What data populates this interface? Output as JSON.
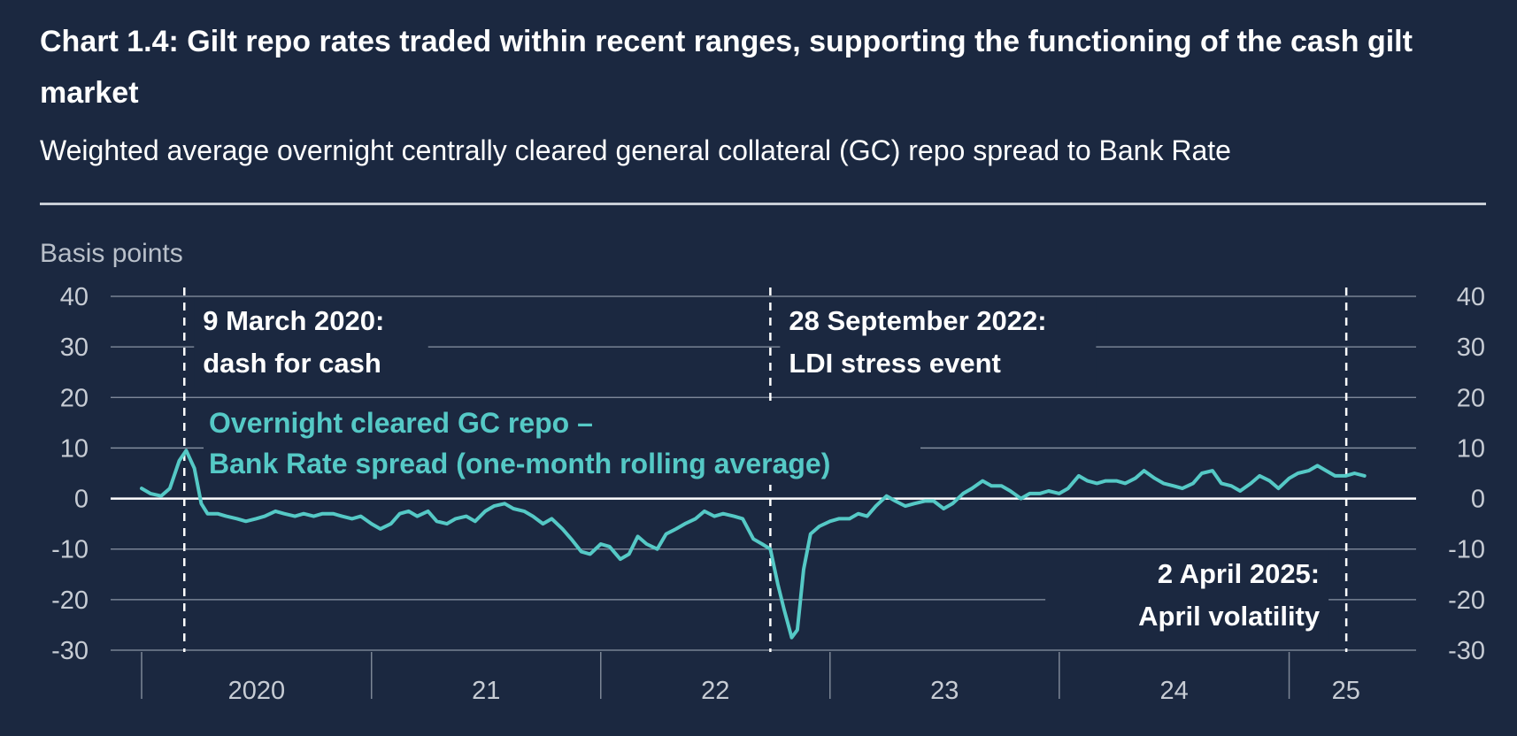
{
  "header": {
    "title": "Chart 1.4: Gilt repo rates traded within recent ranges, supporting the functioning of the cash gilt market",
    "subtitle": "Weighted average overnight centrally cleared general collateral (GC) repo spread to Bank Rate"
  },
  "chart_data": {
    "type": "line",
    "title": "Chart 1.4: Gilt repo rates traded within recent ranges, supporting the functioning of the cash gilt market",
    "subtitle": "Weighted average overnight centrally cleared general collateral (GC) repo spread to Bank Rate",
    "ylabel": "Basis points",
    "ylim": [
      -30,
      40
    ],
    "yticks": [
      40,
      30,
      20,
      10,
      0,
      -10,
      -20,
      -30
    ],
    "ytick_labels": [
      "40",
      "30",
      "20",
      "10",
      "0",
      "-10",
      "-20",
      "-30"
    ],
    "x_range": [
      "2020-01-01",
      "2025-07-01"
    ],
    "x_year_labels": [
      {
        "year": 2020,
        "label": "2020"
      },
      {
        "year": 2021,
        "label": "21"
      },
      {
        "year": 2022,
        "label": "22"
      },
      {
        "year": 2023,
        "label": "23"
      },
      {
        "year": 2024,
        "label": "24"
      },
      {
        "year": 2025,
        "label": "25"
      }
    ],
    "grid": true,
    "zero_line": true,
    "colors": {
      "series": "#55c9c6",
      "background": "#1b2840",
      "grid": "#8a94a4",
      "zero_line": "#ffffff",
      "text": "#ffffff"
    },
    "series": [
      {
        "name": "Overnight cleared GC repo – Bank Rate spread (one-month rolling average)",
        "name_lines": [
          "Overnight cleared GC repo –",
          "Bank Rate spread (one-month rolling average)"
        ],
        "points": [
          [
            "2020-01-01",
            2.0
          ],
          [
            "2020-01-15",
            1.0
          ],
          [
            "2020-02-01",
            0.5
          ],
          [
            "2020-02-15",
            2.0
          ],
          [
            "2020-03-01",
            7.5
          ],
          [
            "2020-03-12",
            9.5
          ],
          [
            "2020-03-25",
            6.0
          ],
          [
            "2020-04-05",
            -1.0
          ],
          [
            "2020-04-15",
            -3.0
          ],
          [
            "2020-05-01",
            -3.0
          ],
          [
            "2020-05-15",
            -3.5
          ],
          [
            "2020-06-01",
            -4.0
          ],
          [
            "2020-06-15",
            -4.5
          ],
          [
            "2020-07-01",
            -4.0
          ],
          [
            "2020-07-15",
            -3.5
          ],
          [
            "2020-08-01",
            -2.5
          ],
          [
            "2020-08-15",
            -3.0
          ],
          [
            "2020-09-01",
            -3.5
          ],
          [
            "2020-09-15",
            -3.0
          ],
          [
            "2020-10-01",
            -3.5
          ],
          [
            "2020-10-15",
            -3.0
          ],
          [
            "2020-11-01",
            -3.0
          ],
          [
            "2020-11-15",
            -3.5
          ],
          [
            "2020-12-01",
            -4.0
          ],
          [
            "2020-12-15",
            -3.5
          ],
          [
            "2021-01-01",
            -5.0
          ],
          [
            "2021-01-15",
            -6.0
          ],
          [
            "2021-02-01",
            -5.0
          ],
          [
            "2021-02-15",
            -3.0
          ],
          [
            "2021-03-01",
            -2.5
          ],
          [
            "2021-03-15",
            -3.5
          ],
          [
            "2021-04-01",
            -2.5
          ],
          [
            "2021-04-15",
            -4.5
          ],
          [
            "2021-05-01",
            -5.0
          ],
          [
            "2021-05-15",
            -4.0
          ],
          [
            "2021-06-01",
            -3.5
          ],
          [
            "2021-06-15",
            -4.5
          ],
          [
            "2021-07-01",
            -2.5
          ],
          [
            "2021-07-15",
            -1.5
          ],
          [
            "2021-08-01",
            -1.0
          ],
          [
            "2021-08-15",
            -2.0
          ],
          [
            "2021-09-01",
            -2.5
          ],
          [
            "2021-09-15",
            -3.5
          ],
          [
            "2021-10-01",
            -5.0
          ],
          [
            "2021-10-15",
            -4.0
          ],
          [
            "2021-11-01",
            -6.0
          ],
          [
            "2021-11-15",
            -8.0
          ],
          [
            "2021-12-01",
            -10.5
          ],
          [
            "2021-12-15",
            -11.0
          ],
          [
            "2022-01-01",
            -9.0
          ],
          [
            "2022-01-15",
            -9.5
          ],
          [
            "2022-02-01",
            -12.0
          ],
          [
            "2022-02-15",
            -11.0
          ],
          [
            "2022-03-01",
            -7.5
          ],
          [
            "2022-03-15",
            -9.0
          ],
          [
            "2022-04-01",
            -10.0
          ],
          [
            "2022-04-15",
            -7.0
          ],
          [
            "2022-05-01",
            -6.0
          ],
          [
            "2022-05-15",
            -5.0
          ],
          [
            "2022-06-01",
            -4.0
          ],
          [
            "2022-06-15",
            -2.5
          ],
          [
            "2022-07-01",
            -3.5
          ],
          [
            "2022-07-15",
            -3.0
          ],
          [
            "2022-08-01",
            -3.5
          ],
          [
            "2022-08-15",
            -4.0
          ],
          [
            "2022-09-01",
            -8.0
          ],
          [
            "2022-09-15",
            -9.0
          ],
          [
            "2022-09-28",
            -10.0
          ],
          [
            "2022-10-10",
            -17.0
          ],
          [
            "2022-10-20",
            -22.0
          ],
          [
            "2022-11-01",
            -27.5
          ],
          [
            "2022-11-10",
            -26.0
          ],
          [
            "2022-11-20",
            -14.0
          ],
          [
            "2022-12-01",
            -7.0
          ],
          [
            "2022-12-15",
            -5.5
          ],
          [
            "2023-01-01",
            -4.5
          ],
          [
            "2023-01-15",
            -4.0
          ],
          [
            "2023-02-01",
            -4.0
          ],
          [
            "2023-02-15",
            -3.0
          ],
          [
            "2023-03-01",
            -3.5
          ],
          [
            "2023-03-15",
            -1.5
          ],
          [
            "2023-04-01",
            0.5
          ],
          [
            "2023-04-15",
            -0.5
          ],
          [
            "2023-05-01",
            -1.5
          ],
          [
            "2023-05-15",
            -1.0
          ],
          [
            "2023-06-01",
            -0.5
          ],
          [
            "2023-06-15",
            -0.5
          ],
          [
            "2023-07-01",
            -2.0
          ],
          [
            "2023-07-15",
            -1.0
          ],
          [
            "2023-08-01",
            1.0
          ],
          [
            "2023-08-15",
            2.0
          ],
          [
            "2023-09-01",
            3.5
          ],
          [
            "2023-09-15",
            2.5
          ],
          [
            "2023-10-01",
            2.5
          ],
          [
            "2023-10-15",
            1.5
          ],
          [
            "2023-11-01",
            0.0
          ],
          [
            "2023-11-15",
            1.0
          ],
          [
            "2023-12-01",
            1.0
          ],
          [
            "2023-12-15",
            1.5
          ],
          [
            "2024-01-01",
            1.0
          ],
          [
            "2024-01-15",
            2.0
          ],
          [
            "2024-02-01",
            4.5
          ],
          [
            "2024-02-15",
            3.5
          ],
          [
            "2024-03-01",
            3.0
          ],
          [
            "2024-03-15",
            3.5
          ],
          [
            "2024-04-01",
            3.5
          ],
          [
            "2024-04-15",
            3.0
          ],
          [
            "2024-05-01",
            4.0
          ],
          [
            "2024-05-15",
            5.5
          ],
          [
            "2024-06-01",
            4.0
          ],
          [
            "2024-06-15",
            3.0
          ],
          [
            "2024-07-01",
            2.5
          ],
          [
            "2024-07-15",
            2.0
          ],
          [
            "2024-08-01",
            3.0
          ],
          [
            "2024-08-15",
            5.0
          ],
          [
            "2024-09-01",
            5.5
          ],
          [
            "2024-09-15",
            3.0
          ],
          [
            "2024-10-01",
            2.5
          ],
          [
            "2024-10-15",
            1.5
          ],
          [
            "2024-11-01",
            3.0
          ],
          [
            "2024-11-15",
            4.5
          ],
          [
            "2024-12-01",
            3.5
          ],
          [
            "2024-12-15",
            2.0
          ],
          [
            "2025-01-01",
            4.0
          ],
          [
            "2025-01-15",
            5.0
          ],
          [
            "2025-02-01",
            5.5
          ],
          [
            "2025-02-15",
            6.5
          ],
          [
            "2025-03-01",
            5.5
          ],
          [
            "2025-03-15",
            4.5
          ],
          [
            "2025-04-01",
            4.5
          ],
          [
            "2025-04-15",
            5.0
          ],
          [
            "2025-05-01",
            4.5
          ]
        ]
      }
    ],
    "annotations": [
      {
        "date": "2020-03-09",
        "lines": [
          "9 March 2020:",
          "dash for cash"
        ],
        "text_position": "top-right"
      },
      {
        "date": "2022-09-28",
        "lines": [
          "28 September 2022:",
          "LDI stress event"
        ],
        "text_position": "top-right"
      },
      {
        "date": "2025-04-02",
        "lines": [
          "2 April 2025:",
          "April volatility"
        ],
        "text_position": "bottom-left"
      }
    ]
  }
}
